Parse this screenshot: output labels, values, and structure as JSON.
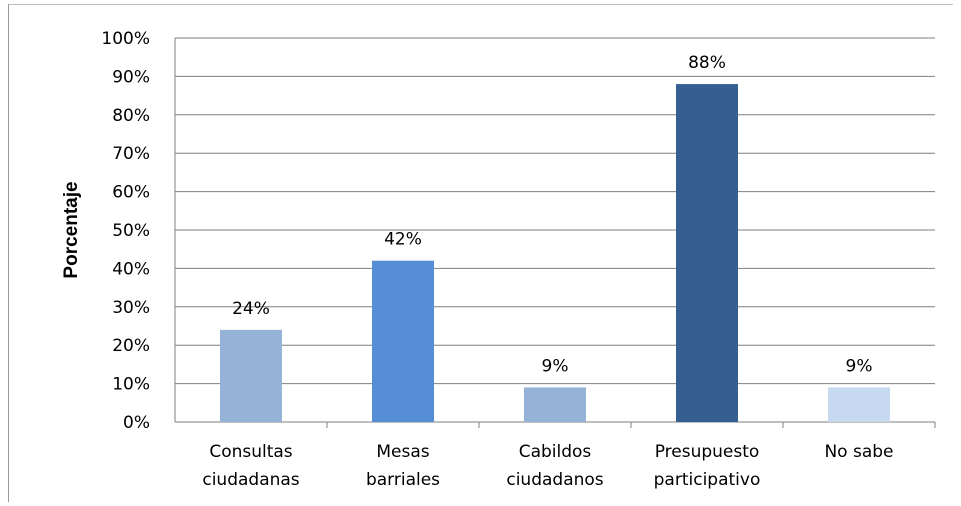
{
  "chart_data": {
    "type": "bar",
    "ylabel": "Porcentaje",
    "xlabel": "",
    "ylim": [
      0,
      100
    ],
    "yticks": [
      "0%",
      "10%",
      "20%",
      "30%",
      "40%",
      "50%",
      "60%",
      "70%",
      "80%",
      "90%",
      "100%"
    ],
    "categories": [
      [
        "Consultas",
        "ciudadanas"
      ],
      [
        "Mesas",
        "barriales"
      ],
      [
        "Cabildos",
        "ciudadanos"
      ],
      [
        "Presupuesto",
        "participativo"
      ],
      [
        "No sabe"
      ]
    ],
    "values": [
      24,
      42,
      9,
      88,
      9
    ],
    "data_labels": [
      "24%",
      "42%",
      "9%",
      "88%",
      "9%"
    ],
    "bar_colors": [
      "#95b3d7",
      "#558ed5",
      "#95b3d7",
      "#355f91",
      "#c6d9f1"
    ],
    "grid": true
  }
}
